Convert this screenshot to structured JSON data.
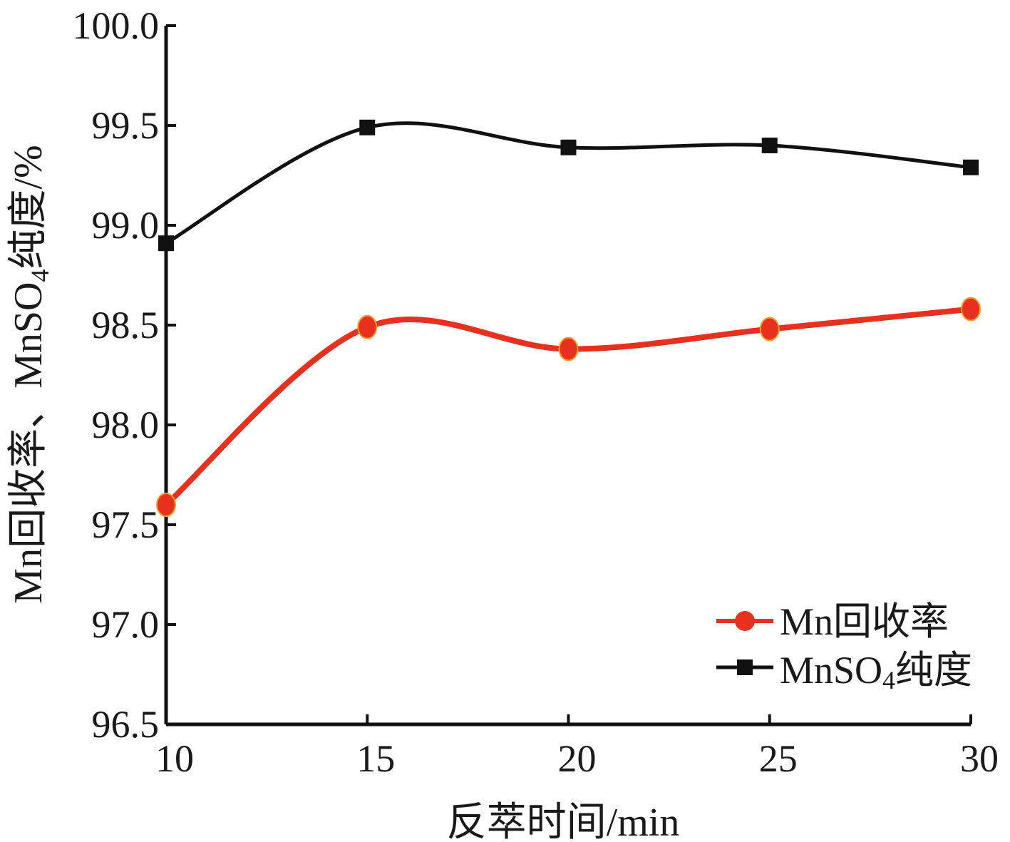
{
  "chart_data": {
    "type": "line",
    "xlabel": "反萃时间/min",
    "ylabel": {
      "pre": "Mn回收率、MnSO",
      "sub": "4",
      "post": "纯度/%"
    },
    "xlim": [
      10,
      30
    ],
    "ylim": [
      96.5,
      100.0
    ],
    "x_ticks": [
      10,
      15,
      20,
      25,
      30
    ],
    "y_ticks": [
      "96.5",
      "97.0",
      "97.5",
      "98.0",
      "98.5",
      "99.0",
      "99.5",
      "100.0"
    ],
    "x": [
      10,
      15,
      20,
      25,
      30
    ],
    "series": [
      {
        "name": "Mn回收率",
        "values": [
          97.6,
          98.49,
          98.38,
          98.48,
          98.58
        ],
        "color": "#e8301e",
        "marker": "circle"
      },
      {
        "name_pre": "MnSO",
        "name_sub": "4",
        "name_post": "纯度",
        "values": [
          98.91,
          99.49,
          99.39,
          99.4,
          99.29
        ],
        "color": "#111111",
        "marker": "square"
      }
    ],
    "grid": false,
    "legend_position": "bottom-right"
  }
}
